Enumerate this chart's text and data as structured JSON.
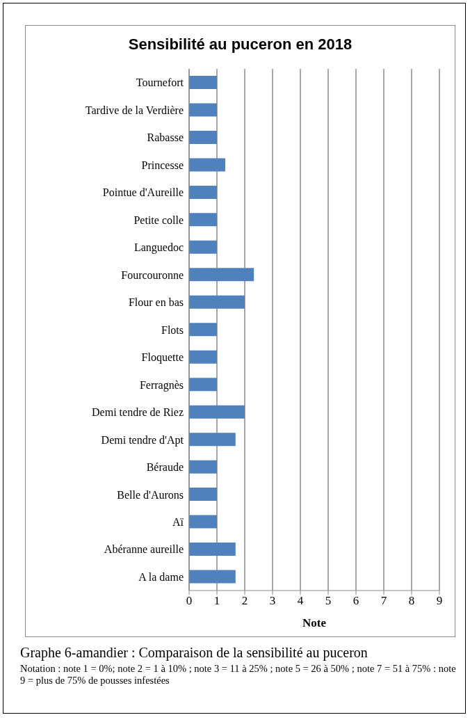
{
  "chart_data": {
    "type": "bar",
    "orientation": "horizontal",
    "title": "Sensibilité au puceron en 2018",
    "xlabel": "Note",
    "categories": [
      "Tournefort",
      "Tardive de la Verdière",
      "Rabasse",
      "Princesse",
      "Pointue d'Aureille",
      "Petite colle",
      "Languedoc",
      "Fourcouronne",
      "Flour en bas",
      "Flots",
      "Floquette",
      "Ferragnès",
      "Demi tendre de Riez",
      "Demi tendre d'Apt",
      "Béraude",
      "Belle d'Aurons",
      "Aï",
      "Abéranne aureille",
      "A la dame"
    ],
    "values": [
      1,
      1,
      1,
      1.3,
      1,
      1,
      1,
      2.33,
      2,
      1,
      1,
      1,
      2,
      1.67,
      1,
      1,
      1,
      1.67,
      1.67
    ],
    "color": "#4f81bd",
    "xlim": [
      0,
      9
    ],
    "xticks": [
      0,
      1,
      2,
      3,
      4,
      5,
      6,
      7,
      8,
      9
    ],
    "grid": "x",
    "annotations": [
      "Graphe 6-amandier : Comparaison de la sensibilité au puceron",
      "Notation : note 1 = 0%; note 2 = 1 à 10% ; note 3 = 11 à 25% ; note 5 = 26 à 50% ; note 7 = 51 à 75% : note 9 = plus de 75% de pousses infestées"
    ]
  }
}
